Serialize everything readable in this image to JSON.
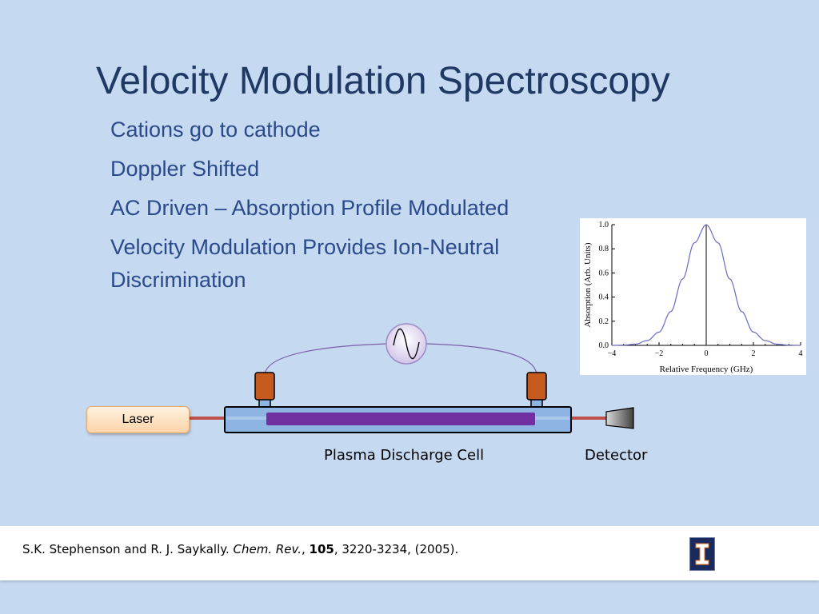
{
  "slide": {
    "title": "Velocity Modulation Spectroscopy",
    "bullets": [
      "Cations go to cathode",
      "Doppler Shifted",
      "AC Driven – Absorption Profile Modulated",
      "Velocity Modulation Provides Ion-Neutral Discrimination"
    ]
  },
  "diagram": {
    "laser_label": "Laser",
    "cell_label": "Plasma Discharge Cell",
    "detector_label": "Detector",
    "ac_source_icon": "sine-wave-icon",
    "colors": {
      "tube": "#8db4e2",
      "plasma": "#7030a0",
      "electrode": "#c55a1f",
      "beam": "#c0504d",
      "wire": "#7a5fa8"
    }
  },
  "footer": {
    "authors": "S.K. Stephenson and R. J. Saykally.",
    "journal": "Chem. Rev.",
    "volume": "105",
    "pages_year": ", 3220-3234, (2005).",
    "logo_icon": "university-block-i-icon"
  },
  "chart_data": {
    "type": "line",
    "title": "",
    "xlabel": "Relative Frequency (GHz)",
    "ylabel": "Absorption (Arb. Units)",
    "xlim": [
      -4,
      4
    ],
    "ylim": [
      0,
      1
    ],
    "x_ticks": [
      "−4",
      "−2",
      "0",
      "2",
      "4"
    ],
    "y_ticks": [
      "0.0",
      "0.2",
      "0.4",
      "0.6",
      "0.8",
      "1.0"
    ],
    "grid": false,
    "series": [
      {
        "x": [
          -4,
          -3.5,
          -3,
          -2.5,
          -2,
          -1.5,
          -1,
          -0.5,
          0,
          0.5,
          1,
          1.5,
          2,
          2.5,
          3,
          3.5,
          4
        ],
        "y": [
          0.0,
          0.002,
          0.01,
          0.04,
          0.11,
          0.28,
          0.55,
          0.85,
          1.0,
          0.85,
          0.55,
          0.28,
          0.11,
          0.04,
          0.01,
          0.002,
          0.0
        ]
      }
    ],
    "vertical_line_x": 0
  }
}
